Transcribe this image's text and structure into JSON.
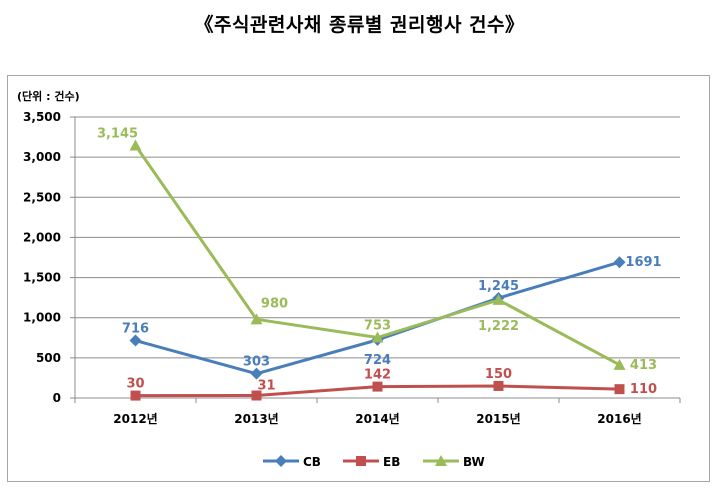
{
  "title": "《주식관련사채 종류별 권리행사 건수》",
  "chart_data": {
    "type": "line",
    "unit_label": "(단위 : 건수)",
    "categories": [
      "2012년",
      "2013년",
      "2014년",
      "2015년",
      "2016년"
    ],
    "ylim": [
      0,
      3500
    ],
    "yticks": [
      "0",
      "500",
      "1,000",
      "1,500",
      "2,000",
      "2,500",
      "3,000",
      "3,500"
    ],
    "grid": true,
    "legend_position": "bottom",
    "series": [
      {
        "name": "CB",
        "color": "#4a7ebb",
        "marker": "diamond",
        "values": [
          716,
          303,
          724,
          1245,
          1691
        ],
        "labels": [
          "716",
          "303",
          "724",
          "1,245",
          "1691"
        ]
      },
      {
        "name": "EB",
        "color": "#c0504d",
        "marker": "square",
        "values": [
          30,
          31,
          142,
          150,
          110
        ],
        "labels": [
          "30",
          "31",
          "142",
          "150",
          "110"
        ]
      },
      {
        "name": "BW",
        "color": "#9bbb59",
        "marker": "triangle",
        "values": [
          3145,
          980,
          753,
          1222,
          413
        ],
        "labels": [
          "3,145",
          "980",
          "753",
          "1,222",
          "413"
        ]
      }
    ]
  }
}
